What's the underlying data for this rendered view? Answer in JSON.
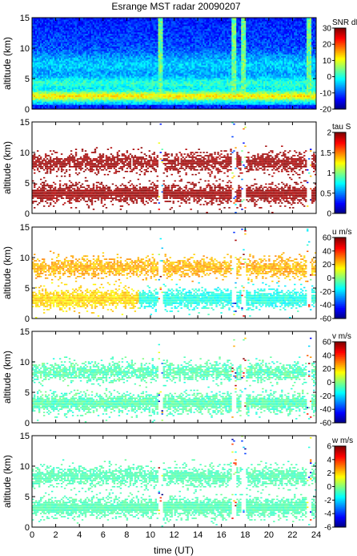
{
  "chart_data": {
    "type": "heatmap",
    "title": "Esrange MST radar 20090207",
    "xlabel": "time (UT)",
    "xlim": [
      0,
      24
    ],
    "x_ticks": [
      "0",
      "2",
      "4",
      "6",
      "8",
      "10",
      "12",
      "14",
      "16",
      "18",
      "20",
      "22",
      "24"
    ],
    "shared_x": true,
    "panels": [
      {
        "ylabel": "altitude (km)",
        "ylim": [
          0,
          15
        ],
        "y_ticks": [
          "0",
          "5",
          "10",
          "15"
        ],
        "colorbar_label": "SNR dB",
        "clim": [
          -20,
          30
        ],
        "colorbar_ticks": [
          "-20",
          "-10",
          "0",
          "10",
          "20",
          "30"
        ],
        "colormap": "jet",
        "background": "filled"
      },
      {
        "ylabel": "altitude (km)",
        "ylim": [
          0,
          15
        ],
        "y_ticks": [
          "0",
          "5",
          "10",
          "15"
        ],
        "colorbar_label": "tau S",
        "clim": [
          0,
          2
        ],
        "colorbar_ticks": [
          "0",
          "0.5",
          "1",
          "1.5",
          "2"
        ],
        "colormap": "jet",
        "background": "white"
      },
      {
        "ylabel": "altitude (km)",
        "ylim": [
          0,
          15
        ],
        "y_ticks": [
          "0",
          "5",
          "10",
          "15"
        ],
        "colorbar_label": "u m/s",
        "clim": [
          -60,
          60
        ],
        "colorbar_ticks": [
          "-60",
          "-40",
          "-20",
          "0",
          "20",
          "40",
          "60"
        ],
        "colormap": "jet",
        "background": "white"
      },
      {
        "ylabel": "altitude (km)",
        "ylim": [
          0,
          15
        ],
        "y_ticks": [
          "0",
          "5",
          "10",
          "15"
        ],
        "colorbar_label": "v m/s",
        "clim": [
          -60,
          60
        ],
        "colorbar_ticks": [
          "-60",
          "-40",
          "-20",
          "0",
          "20",
          "40",
          "60"
        ],
        "colormap": "jet",
        "background": "white"
      },
      {
        "ylabel": "altitude (km)",
        "ylim": [
          0,
          15
        ],
        "y_ticks": [
          "0",
          "5",
          "10",
          "15"
        ],
        "colorbar_label": "w m/s",
        "clim": [
          -6,
          6
        ],
        "colorbar_ticks": [
          "-6",
          "-4",
          "-2",
          "0",
          "2",
          "4",
          "6"
        ],
        "colormap": "jet",
        "background": "white"
      }
    ]
  }
}
